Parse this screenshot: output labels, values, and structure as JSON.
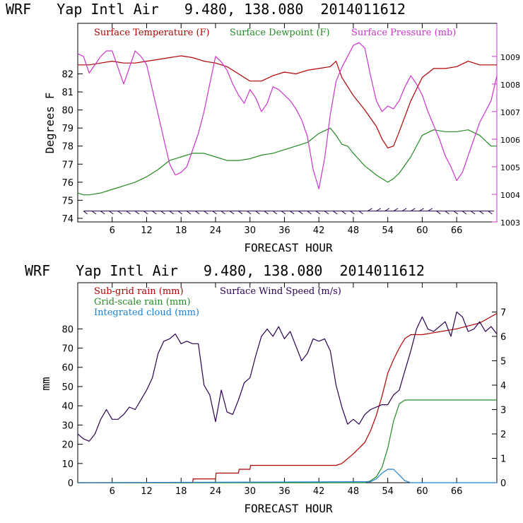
{
  "colors": {
    "temp": "#b00000",
    "dew": "#228b22",
    "pres": "#cc33cc",
    "subrain": "#b00000",
    "gridrain": "#228b22",
    "cloud": "#1e7fd0",
    "wind": "#2a0050",
    "axis": "#cc33cc"
  },
  "chart_data": [
    {
      "type": "line",
      "title": "WRF   Yap Intl Air   9.480, 138.080  2014011612",
      "xlabel": "FORECAST HOUR",
      "ylabel": "Degrees F",
      "xlim": [
        0,
        73
      ],
      "ylim": [
        73.8,
        84.8
      ],
      "y2lim": [
        1003,
        1010.2
      ],
      "x_ticks": [
        6,
        12,
        18,
        24,
        30,
        36,
        42,
        48,
        54,
        60,
        66
      ],
      "y_ticks": [
        74,
        75,
        76,
        77,
        78,
        79,
        80,
        81,
        82
      ],
      "y2_ticks": [
        1003,
        1004,
        1005,
        1006,
        1007,
        1008,
        1009
      ],
      "x_tick_labels": [
        "6",
        "12",
        "18",
        "24",
        "30",
        "36",
        "42",
        "48",
        "54",
        "60",
        "66"
      ],
      "y_tick_labels": [
        "74",
        "75",
        "76",
        "77",
        "78",
        "79",
        "80",
        "81",
        "82"
      ],
      "y2_tick_labels": [
        "1003",
        "1004",
        "1005",
        "1006",
        "1007",
        "1008",
        "1009"
      ],
      "series": [
        {
          "name": "Surface Temperature (F)",
          "axis": "left",
          "color_key": "temp",
          "x": [
            0,
            2,
            4,
            6,
            8,
            10,
            12,
            14,
            16,
            18,
            20,
            22,
            24,
            26,
            28,
            30,
            32,
            34,
            36,
            38,
            40,
            42,
            44,
            45,
            46,
            48,
            50,
            52,
            53,
            54,
            55,
            56,
            58,
            60,
            62,
            64,
            66,
            68,
            70,
            72,
            73
          ],
          "y": [
            82.5,
            82.5,
            82.6,
            82.7,
            82.6,
            82.6,
            82.7,
            82.8,
            82.9,
            83.0,
            82.9,
            82.7,
            82.6,
            82.4,
            82.0,
            81.6,
            81.6,
            81.9,
            82.1,
            82.0,
            82.2,
            82.3,
            82.4,
            82.7,
            81.8,
            80.8,
            80.0,
            79.1,
            78.4,
            77.9,
            78.0,
            78.8,
            80.5,
            81.8,
            82.3,
            82.3,
            82.4,
            82.7,
            82.5,
            82.5,
            82.5
          ]
        },
        {
          "name": "Surface Dewpoint (F)",
          "axis": "left",
          "color_key": "dew",
          "x": [
            0,
            1,
            2,
            4,
            6,
            8,
            10,
            12,
            14,
            16,
            18,
            20,
            22,
            24,
            26,
            28,
            30,
            32,
            34,
            36,
            38,
            40,
            42,
            44,
            45,
            46,
            47,
            48,
            50,
            52,
            54,
            55,
            56,
            58,
            60,
            62,
            64,
            66,
            68,
            70,
            72,
            73
          ],
          "y": [
            75.4,
            75.3,
            75.3,
            75.4,
            75.6,
            75.8,
            76.0,
            76.3,
            76.7,
            77.2,
            77.4,
            77.6,
            77.6,
            77.4,
            77.2,
            77.2,
            77.3,
            77.5,
            77.6,
            77.8,
            78.0,
            78.2,
            78.7,
            79.0,
            78.6,
            78.1,
            78.0,
            77.6,
            76.9,
            76.4,
            76.0,
            76.2,
            76.5,
            77.4,
            78.6,
            78.9,
            78.8,
            78.8,
            78.9,
            78.6,
            78.0,
            78.0
          ]
        },
        {
          "name": "Surface Pressure (mb)",
          "axis": "right",
          "color_key": "pres",
          "x": [
            0,
            1,
            2,
            3,
            4,
            5,
            6,
            7,
            8,
            9,
            10,
            11,
            12,
            13,
            14,
            15,
            16,
            17,
            18,
            19,
            20,
            21,
            22,
            23,
            24,
            25,
            26,
            27,
            28,
            29,
            30,
            31,
            32,
            33,
            34,
            35,
            36,
            37,
            38,
            39,
            40,
            41,
            42,
            43,
            44,
            45,
            46,
            47,
            48,
            49,
            50,
            51,
            52,
            53,
            54,
            55,
            56,
            57,
            58,
            59,
            60,
            61,
            62,
            63,
            64,
            65,
            66,
            67,
            68,
            69,
            70,
            71,
            72,
            73
          ],
          "y": [
            1009.1,
            1009.0,
            1008.4,
            1008.7,
            1009.0,
            1009.2,
            1009.2,
            1008.6,
            1008.0,
            1008.6,
            1009.2,
            1009.0,
            1008.7,
            1007.8,
            1006.9,
            1006.0,
            1005.1,
            1004.7,
            1004.8,
            1005.0,
            1005.6,
            1006.2,
            1007.0,
            1008.0,
            1009.0,
            1008.8,
            1008.5,
            1008.0,
            1007.6,
            1007.3,
            1007.8,
            1007.5,
            1007.0,
            1007.3,
            1007.9,
            1007.8,
            1007.6,
            1007.4,
            1007.1,
            1006.7,
            1006.1,
            1004.9,
            1004.2,
            1005.3,
            1006.9,
            1008.1,
            1008.6,
            1009.0,
            1009.4,
            1009.5,
            1009.3,
            1008.3,
            1007.4,
            1007.0,
            1007.2,
            1007.1,
            1007.4,
            1007.9,
            1008.3,
            1008.0,
            1007.6,
            1007.0,
            1006.5,
            1006.0,
            1005.4,
            1005.0,
            1004.5,
            1004.8,
            1005.4,
            1006.0,
            1006.6,
            1007.0,
            1007.4,
            1008.3
          ]
        }
      ],
      "legend": [
        "Surface Temperature (F)",
        "Surface Dewpoint (F)",
        "Surface Pressure (mb)"
      ],
      "legend_position": "top-left"
    },
    {
      "type": "line",
      "title": "WRF   Yap Intl Air   9.480, 138.080  2014011612",
      "xlabel": "FORECAST HOUR",
      "ylabel": "mm",
      "xlim": [
        0,
        73
      ],
      "ylim": [
        0,
        104
      ],
      "y2lim": [
        0,
        8.2
      ],
      "x_ticks": [
        6,
        12,
        18,
        24,
        30,
        36,
        42,
        48,
        54,
        60,
        66
      ],
      "y_ticks": [
        0,
        10,
        20,
        30,
        40,
        50,
        60,
        70,
        80
      ],
      "y2_ticks": [
        0,
        1,
        2,
        3,
        4,
        5,
        6,
        7
      ],
      "x_tick_labels": [
        "6",
        "12",
        "18",
        "24",
        "30",
        "36",
        "42",
        "48",
        "54",
        "60",
        "66"
      ],
      "y_tick_labels": [
        "0",
        "10",
        "20",
        "30",
        "40",
        "50",
        "60",
        "70",
        "80"
      ],
      "y2_tick_labels": [
        "0",
        "1",
        "2",
        "3",
        "4",
        "5",
        "6",
        "7"
      ],
      "series": [
        {
          "name": "Sub-grid rain (mm)",
          "axis": "left",
          "color_key": "subrain",
          "x": [
            0,
            20,
            20.1,
            24,
            24.1,
            28,
            28.1,
            30,
            30.1,
            45,
            46,
            48,
            50,
            51,
            52,
            53,
            54,
            55,
            56,
            57,
            58,
            59,
            60,
            62,
            66,
            70,
            73
          ],
          "y": [
            0,
            0,
            2,
            2,
            5,
            5,
            7,
            7,
            9,
            9,
            10,
            15,
            21,
            27,
            35,
            45,
            57,
            64,
            70,
            75,
            77,
            77,
            77,
            78,
            80,
            83,
            88
          ]
        },
        {
          "name": "Grid-scale rain (mm)",
          "axis": "left",
          "color_key": "gridrain",
          "x": [
            0,
            50,
            51,
            52,
            53,
            54,
            55,
            56,
            57,
            58,
            73
          ],
          "y": [
            0,
            0,
            1,
            3,
            8,
            18,
            32,
            41,
            43,
            43,
            43
          ]
        },
        {
          "name": "Integrated cloud (mm)",
          "axis": "left",
          "color_key": "cloud",
          "x": [
            0,
            51,
            52,
            53,
            54,
            55,
            56,
            57,
            58,
            73
          ],
          "y": [
            0,
            0.5,
            2,
            5,
            7,
            7,
            4,
            1,
            0,
            0
          ]
        },
        {
          "name": "Surface Wind Speed (m/s)",
          "axis": "right",
          "color_key": "wind",
          "x": [
            0,
            1,
            2,
            3,
            4,
            5,
            6,
            7,
            8,
            9,
            10,
            11,
            12,
            13,
            14,
            15,
            16,
            17,
            18,
            19,
            20,
            21,
            22,
            23,
            24,
            25,
            26,
            27,
            28,
            29,
            30,
            31,
            32,
            33,
            34,
            35,
            36,
            37,
            38,
            39,
            40,
            41,
            42,
            43,
            44,
            45,
            46,
            47,
            48,
            49,
            50,
            51,
            52,
            53,
            54,
            55,
            56,
            57,
            58,
            59,
            60,
            61,
            62,
            63,
            64,
            65,
            66,
            67,
            68,
            69,
            70,
            71,
            72,
            73
          ],
          "y": [
            2.0,
            1.8,
            1.7,
            2.0,
            2.6,
            3.0,
            2.6,
            2.6,
            2.8,
            3.1,
            3.0,
            3.4,
            3.8,
            4.3,
            5.3,
            5.8,
            5.9,
            6.1,
            5.7,
            5.8,
            5.7,
            5.7,
            4.0,
            3.6,
            2.5,
            3.8,
            2.9,
            2.8,
            3.4,
            4.1,
            4.3,
            5.2,
            6.0,
            6.3,
            6.0,
            6.4,
            5.9,
            6.2,
            5.6,
            5.0,
            5.3,
            5.9,
            5.8,
            5.9,
            5.4,
            4.0,
            3.1,
            2.4,
            2.6,
            2.4,
            2.8,
            3.0,
            3.1,
            3.2,
            3.2,
            3.6,
            3.8,
            4.6,
            5.4,
            6.3,
            6.8,
            6.3,
            6.2,
            6.4,
            6.6,
            6.0,
            7.0,
            6.8,
            6.2,
            6.3,
            6.6,
            6.2,
            6.4,
            6.1
          ]
        }
      ],
      "legend": [
        "Sub-grid rain (mm)",
        "Grid-scale rain (mm)",
        "Integrated cloud (mm)",
        "Surface Wind Speed (m/s)"
      ],
      "legend_position": "top-left"
    }
  ]
}
